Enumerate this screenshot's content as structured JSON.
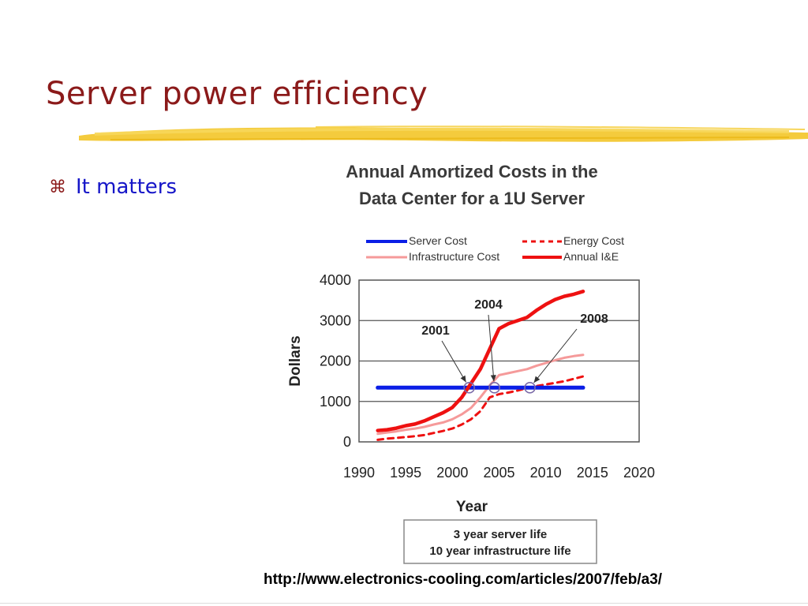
{
  "slide": {
    "title": "Server power efficiency",
    "bullet_icon": "command-key-icon",
    "bullet_text": "It matters",
    "source_url": "http://www.electronics-cooling.com/articles/2007/feb/a3/"
  },
  "colors": {
    "title": "#8b1a1a",
    "bullet_text": "#1515c8",
    "brush": "#f2c21b",
    "server_cost": "#0a1ee6",
    "energy_cost": "#ee1111",
    "infrastructure_cost": "#f59a9a",
    "annual_ie": "#ee1111"
  },
  "chart_data": {
    "type": "line",
    "title": [
      "Annual Amortized Costs in the",
      "Data Center for a 1U Server"
    ],
    "xlabel": "Year",
    "ylabel": "Dollars",
    "xlim": [
      1990,
      2020
    ],
    "ylim": [
      0,
      4000
    ],
    "x_ticks": [
      1990,
      1995,
      2000,
      2005,
      2010,
      2015,
      2020
    ],
    "y_ticks": [
      0,
      1000,
      2000,
      3000,
      4000
    ],
    "grid": true,
    "legend_position": "top",
    "series": [
      {
        "name": "Server Cost",
        "style": "solid-thick",
        "color": "#0a1ee6",
        "points": [
          [
            1992,
            1340
          ],
          [
            2014,
            1340
          ]
        ]
      },
      {
        "name": "Energy Cost",
        "style": "dashed",
        "color": "#ee1111",
        "points": [
          [
            1992,
            50
          ],
          [
            1993,
            80
          ],
          [
            1994,
            100
          ],
          [
            1995,
            120
          ],
          [
            1996,
            140
          ],
          [
            1997,
            170
          ],
          [
            1998,
            220
          ],
          [
            1999,
            270
          ],
          [
            2000,
            330
          ],
          [
            2001,
            430
          ],
          [
            2002,
            560
          ],
          [
            2003,
            760
          ],
          [
            2004,
            1100
          ],
          [
            2005,
            1180
          ],
          [
            2006,
            1220
          ],
          [
            2007,
            1270
          ],
          [
            2008,
            1330
          ],
          [
            2009,
            1380
          ],
          [
            2010,
            1420
          ],
          [
            2011,
            1460
          ],
          [
            2012,
            1500
          ],
          [
            2013,
            1560
          ],
          [
            2014,
            1620
          ]
        ]
      },
      {
        "name": "Infrastructure Cost",
        "style": "solid",
        "color": "#f59a9a",
        "points": [
          [
            1992,
            200
          ],
          [
            1993,
            230
          ],
          [
            1994,
            260
          ],
          [
            1995,
            300
          ],
          [
            1996,
            330
          ],
          [
            1997,
            370
          ],
          [
            1998,
            430
          ],
          [
            1999,
            480
          ],
          [
            2000,
            560
          ],
          [
            2001,
            680
          ],
          [
            2002,
            840
          ],
          [
            2003,
            1100
          ],
          [
            2004,
            1400
          ],
          [
            2005,
            1650
          ],
          [
            2006,
            1700
          ],
          [
            2007,
            1750
          ],
          [
            2008,
            1800
          ],
          [
            2009,
            1880
          ],
          [
            2010,
            1950
          ],
          [
            2011,
            2020
          ],
          [
            2012,
            2080
          ],
          [
            2013,
            2120
          ],
          [
            2014,
            2150
          ]
        ]
      },
      {
        "name": "Annual I&E",
        "style": "solid-thick",
        "color": "#ee1111",
        "points": [
          [
            1992,
            280
          ],
          [
            1993,
            300
          ],
          [
            1994,
            340
          ],
          [
            1995,
            400
          ],
          [
            1996,
            440
          ],
          [
            1997,
            520
          ],
          [
            1998,
            620
          ],
          [
            1999,
            720
          ],
          [
            2000,
            850
          ],
          [
            2001,
            1100
          ],
          [
            2002,
            1450
          ],
          [
            2003,
            1800
          ],
          [
            2004,
            2300
          ],
          [
            2005,
            2800
          ],
          [
            2006,
            2920
          ],
          [
            2007,
            3000
          ],
          [
            2008,
            3080
          ],
          [
            2009,
            3250
          ],
          [
            2010,
            3400
          ],
          [
            2011,
            3520
          ],
          [
            2012,
            3600
          ],
          [
            2013,
            3650
          ],
          [
            2014,
            3720
          ]
        ]
      }
    ],
    "annotations": [
      {
        "label": "2001",
        "x": 2001.8,
        "y": 1340
      },
      {
        "label": "2004",
        "x": 2004.5,
        "y": 1340
      },
      {
        "label": "2008",
        "x": 2008.3,
        "y": 1340
      }
    ],
    "footnote": [
      "3 year server life",
      "10 year infrastructure life"
    ]
  }
}
